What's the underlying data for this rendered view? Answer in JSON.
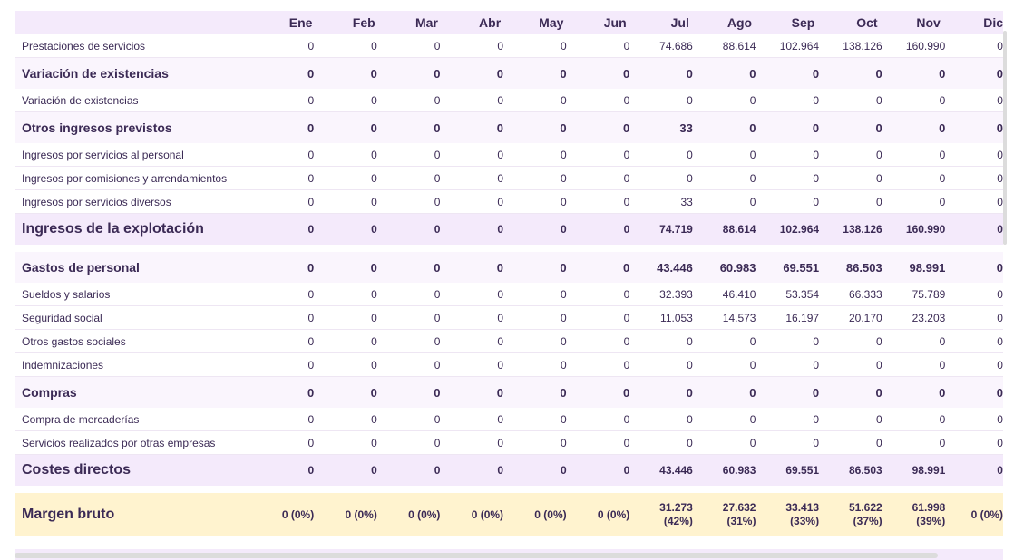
{
  "months": [
    "Ene",
    "Feb",
    "Mar",
    "Abr",
    "May",
    "Jun",
    "Jul",
    "Ago",
    "Sep",
    "Oct",
    "Nov",
    "Dic"
  ],
  "rows": [
    {
      "label": "Prestaciones de servicios",
      "values": [
        "0",
        "0",
        "0",
        "0",
        "0",
        "0",
        "74.686",
        "88.614",
        "102.964",
        "138.126",
        "160.990",
        "0"
      ]
    },
    {
      "label": "Variación de existencias",
      "values": [
        "0",
        "0",
        "0",
        "0",
        "0",
        "0",
        "0",
        "0",
        "0",
        "0",
        "0",
        "0"
      ]
    },
    {
      "label": "Variación de existencias",
      "values": [
        "0",
        "0",
        "0",
        "0",
        "0",
        "0",
        "0",
        "0",
        "0",
        "0",
        "0",
        "0"
      ]
    },
    {
      "label": "Otros ingresos previstos",
      "values": [
        "0",
        "0",
        "0",
        "0",
        "0",
        "0",
        "33",
        "0",
        "0",
        "0",
        "0",
        "0"
      ]
    },
    {
      "label": "Ingresos por servicios al personal",
      "values": [
        "0",
        "0",
        "0",
        "0",
        "0",
        "0",
        "0",
        "0",
        "0",
        "0",
        "0",
        "0"
      ]
    },
    {
      "label": "Ingresos por comisiones y arrendamientos",
      "values": [
        "0",
        "0",
        "0",
        "0",
        "0",
        "0",
        "0",
        "0",
        "0",
        "0",
        "0",
        "0"
      ]
    },
    {
      "label": "Ingresos por servicios diversos",
      "values": [
        "0",
        "0",
        "0",
        "0",
        "0",
        "0",
        "33",
        "0",
        "0",
        "0",
        "0",
        "0"
      ]
    },
    {
      "label": "Ingresos de la explotación",
      "values": [
        "0",
        "0",
        "0",
        "0",
        "0",
        "0",
        "74.719",
        "88.614",
        "102.964",
        "138.126",
        "160.990",
        "0"
      ]
    },
    {
      "label": "Gastos de personal",
      "values": [
        "0",
        "0",
        "0",
        "0",
        "0",
        "0",
        "43.446",
        "60.983",
        "69.551",
        "86.503",
        "98.991",
        "0"
      ]
    },
    {
      "label": "Sueldos y salarios",
      "values": [
        "0",
        "0",
        "0",
        "0",
        "0",
        "0",
        "32.393",
        "46.410",
        "53.354",
        "66.333",
        "75.789",
        "0"
      ]
    },
    {
      "label": "Seguridad social",
      "values": [
        "0",
        "0",
        "0",
        "0",
        "0",
        "0",
        "11.053",
        "14.573",
        "16.197",
        "20.170",
        "23.203",
        "0"
      ]
    },
    {
      "label": "Otros gastos sociales",
      "values": [
        "0",
        "0",
        "0",
        "0",
        "0",
        "0",
        "0",
        "0",
        "0",
        "0",
        "0",
        "0"
      ]
    },
    {
      "label": "Indemnizaciones",
      "values": [
        "0",
        "0",
        "0",
        "0",
        "0",
        "0",
        "0",
        "0",
        "0",
        "0",
        "0",
        "0"
      ]
    },
    {
      "label": "Compras",
      "values": [
        "0",
        "0",
        "0",
        "0",
        "0",
        "0",
        "0",
        "0",
        "0",
        "0",
        "0",
        "0"
      ]
    },
    {
      "label": "Compra de mercaderías",
      "values": [
        "0",
        "0",
        "0",
        "0",
        "0",
        "0",
        "0",
        "0",
        "0",
        "0",
        "0",
        "0"
      ]
    },
    {
      "label": "Servicios realizados por otras empresas",
      "values": [
        "0",
        "0",
        "0",
        "0",
        "0",
        "0",
        "0",
        "0",
        "0",
        "0",
        "0",
        "0"
      ]
    },
    {
      "label": "Costes directos",
      "values": [
        "0",
        "0",
        "0",
        "0",
        "0",
        "0",
        "43.446",
        "60.983",
        "69.551",
        "86.503",
        "98.991",
        "0"
      ]
    },
    {
      "label": "Margen bruto",
      "values": [
        [
          "0 (0%)"
        ],
        [
          "0 (0%)"
        ],
        [
          "0 (0%)"
        ],
        [
          "0 (0%)"
        ],
        [
          "0 (0%)"
        ],
        [
          "0 (0%)"
        ],
        [
          "31.273",
          "(42%)"
        ],
        [
          "27.632",
          "(31%)"
        ],
        [
          "33.413",
          "(33%)"
        ],
        [
          "51.622",
          "(37%)"
        ],
        [
          "61.998",
          "(39%)"
        ],
        [
          "0 (0%)"
        ]
      ]
    }
  ],
  "colors": {
    "header_bg": "#f4eafb",
    "margin_bg": "#fff3cf",
    "text": "#3b2a55"
  }
}
